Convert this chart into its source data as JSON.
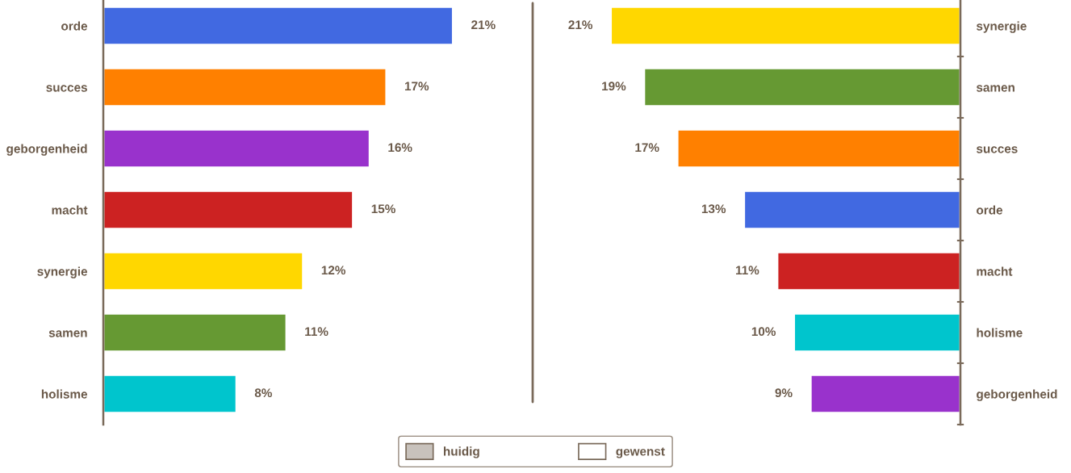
{
  "chart_data": [
    {
      "type": "bar",
      "orientation": "horizontal",
      "data_labels": false,
      "legend": "bottom",
      "categories": [
        "orde",
        "succes",
        "geborgenheid",
        "macht",
        "synergie",
        "samen",
        "holisme"
      ],
      "series": [
        {
          "name": "huidig",
          "color": "#c8c2bc",
          "values": [
            21,
            17,
            16,
            15,
            12,
            11,
            8
          ],
          "colors": [
            "#4169e1",
            "#ff8000",
            "#9932cc",
            "#cc2222",
            "#ffd700",
            "#669933",
            "#00c5cd"
          ],
          "value_labels": [
            "21%",
            "17%",
            "16%",
            "15%",
            "12%",
            "11%",
            "8%"
          ]
        }
      ]
    },
    {
      "type": "bar",
      "orientation": "horizontal",
      "data_labels": false,
      "categories": [
        "synergie",
        "samen",
        "succes",
        "orde",
        "macht",
        "holisme",
        "geborgenheid"
      ],
      "series": [
        {
          "name": "gewenst",
          "color": "#ffffff",
          "values": [
            21,
            19,
            17,
            13,
            11,
            10,
            9
          ],
          "colors": [
            "#ffd700",
            "#669933",
            "#ff8000",
            "#4169e1",
            "#cc2222",
            "#00c5cd",
            "#9932cc"
          ],
          "value_labels": [
            "21%",
            "19%",
            "17%",
            "13%",
            "11%",
            "10%",
            "9%"
          ]
        }
      ]
    }
  ]
}
